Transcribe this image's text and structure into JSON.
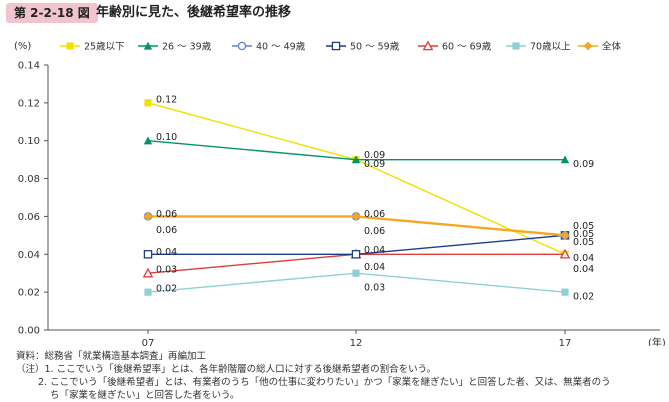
{
  "header": {
    "figure_number": "第 2-2-18 図",
    "title": "年齢別に見た、後継希望率の推移"
  },
  "chart_data": {
    "type": "line",
    "title": "年齢別に見た、後継希望率の推移",
    "ylabel": "(%)",
    "xlabel": "(年)",
    "x": [
      "07",
      "12",
      "17"
    ],
    "ylim": [
      0,
      0.14
    ],
    "yticks": [
      "0.00",
      "0.02",
      "0.04",
      "0.06",
      "0.08",
      "0.10",
      "0.12",
      "0.14"
    ],
    "legend_position": "top",
    "series": [
      {
        "name": "25歳以下",
        "values": [
          0.12,
          0.09,
          0.04
        ],
        "labels": [
          "0.12",
          "0.09",
          "0.04"
        ],
        "color": "#f0e000",
        "marker": "square"
      },
      {
        "name": "26 ～ 39歳",
        "values": [
          0.1,
          0.09,
          0.09
        ],
        "labels": [
          "0.10",
          "0.09",
          "0.09"
        ],
        "color": "#00956a",
        "marker": "triangle"
      },
      {
        "name": "40 ～ 49歳",
        "values": [
          0.06,
          0.06,
          0.05
        ],
        "labels": [
          "0.06",
          "0.06",
          "0.05"
        ],
        "color": "#5b86c8",
        "marker": "circle-open"
      },
      {
        "name": "50 ～ 59歳",
        "values": [
          0.04,
          0.04,
          0.05
        ],
        "labels": [
          "0.04",
          "0.04",
          "0.05"
        ],
        "color": "#1f3c8c",
        "marker": "square-open"
      },
      {
        "name": "60 ～ 69歳",
        "values": [
          0.03,
          0.04,
          0.04
        ],
        "labels": [
          "0.03",
          "0.04",
          "0.04"
        ],
        "color": "#e03c3c",
        "marker": "triangle-open"
      },
      {
        "name": "70歳以上",
        "values": [
          0.02,
          0.03,
          0.02
        ],
        "labels": [
          "0.02",
          "0.03",
          "0.02"
        ],
        "color": "#8fd0d6",
        "marker": "square"
      },
      {
        "name": "全体",
        "values": [
          0.06,
          0.06,
          0.05
        ],
        "labels": [
          "0.06",
          "0.06",
          "0.05"
        ],
        "color": "#f5a623",
        "marker": "diamond"
      }
    ]
  },
  "notes": {
    "source": "資料：総務省「就業構造基本調査」再編加工",
    "note1": "（注）1. ここでいう「後継希望率」とは、各年齢階層の総人口に対する後継希望者の割合をいう。",
    "note2": "2. ここでいう「後継希望者」とは、有業者のうち「他の仕事に変わりたい」かつ「家業を継ぎたい」と回答した者、又は、無業者のう",
    "note3": "ち「家業を継ぎたい」と回答した者をいう。"
  }
}
